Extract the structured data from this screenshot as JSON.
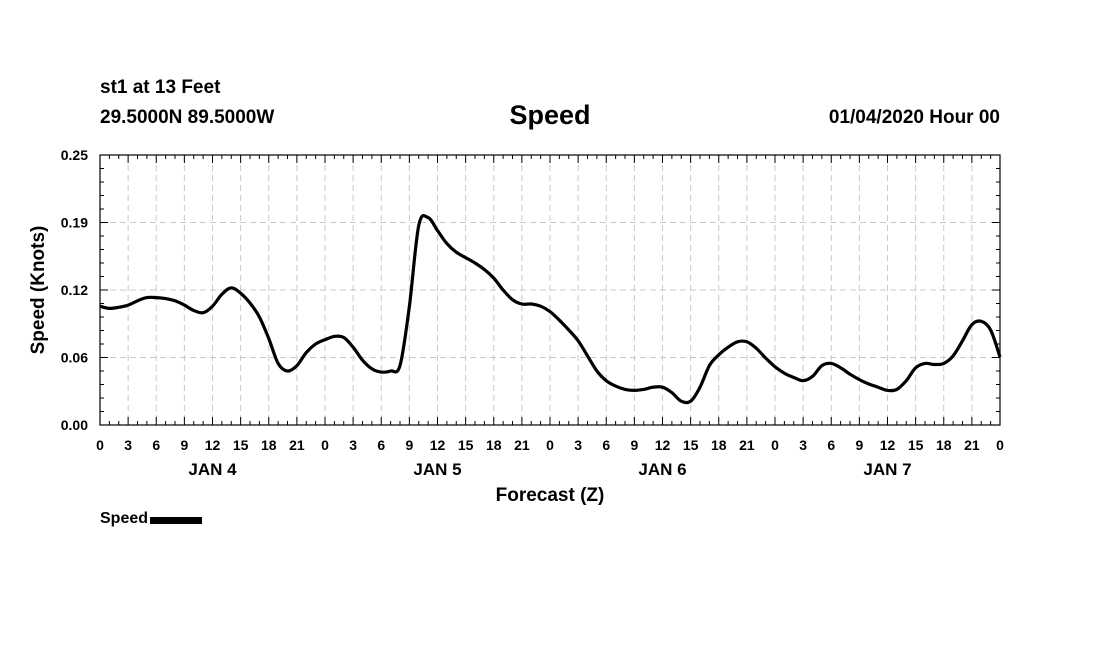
{
  "header": {
    "station": "st1 at 13 Feet",
    "coords": "29.5000N 89.5000W",
    "datetime": "01/04/2020 Hour 00"
  },
  "chart_data": {
    "type": "line",
    "title": "Speed",
    "xlabel": "Forecast (Z)",
    "ylabel": "Speed (Knots)",
    "xlim": [
      0,
      96
    ],
    "ylim": [
      0,
      0.25
    ],
    "yticks": [
      "0.00",
      "0.06",
      "0.12",
      "0.19",
      "0.25"
    ],
    "xtick_labels": [
      "0",
      "3",
      "6",
      "9",
      "12",
      "15",
      "18",
      "21",
      "0",
      "3",
      "6",
      "9",
      "12",
      "15",
      "18",
      "21",
      "0",
      "3",
      "6",
      "9",
      "12",
      "15",
      "18",
      "21",
      "0",
      "3",
      "6",
      "9",
      "12",
      "15",
      "18",
      "21",
      "0"
    ],
    "day_labels": [
      {
        "label": "JAN 4",
        "x": 12
      },
      {
        "label": "JAN 5",
        "x": 36
      },
      {
        "label": "JAN 6",
        "x": 60
      },
      {
        "label": "JAN 7",
        "x": 84
      }
    ],
    "grid": true,
    "legend": "bottom-left",
    "series": [
      {
        "name": "Speed",
        "color": "#000000",
        "x": [
          0,
          1,
          2,
          3,
          4,
          5,
          6,
          7,
          8,
          9,
          10,
          11,
          12,
          13,
          14,
          15,
          16,
          17,
          18,
          19,
          20,
          21,
          22,
          23,
          24,
          25,
          26,
          27,
          28,
          29,
          30,
          31,
          32,
          33,
          34,
          35,
          36,
          37,
          38,
          39,
          40,
          41,
          42,
          43,
          44,
          45,
          46,
          47,
          48,
          49,
          50,
          51,
          52,
          53,
          54,
          55,
          56,
          57,
          58,
          59,
          60,
          61,
          62,
          63,
          64,
          65,
          66,
          67,
          68,
          69,
          70,
          71,
          72,
          73,
          74,
          75,
          76,
          77,
          78,
          79,
          80,
          81,
          82,
          83,
          84,
          85,
          86,
          87,
          88,
          89,
          90,
          91,
          92,
          93,
          94,
          95,
          96
        ],
        "values": [
          0.11,
          0.108,
          0.109,
          0.111,
          0.115,
          0.118,
          0.118,
          0.117,
          0.115,
          0.111,
          0.106,
          0.104,
          0.11,
          0.121,
          0.127,
          0.122,
          0.113,
          0.1,
          0.08,
          0.057,
          0.05,
          0.055,
          0.067,
          0.075,
          0.079,
          0.082,
          0.081,
          0.072,
          0.06,
          0.052,
          0.049,
          0.05,
          0.055,
          0.11,
          0.185,
          0.192,
          0.18,
          0.168,
          0.16,
          0.155,
          0.15,
          0.144,
          0.136,
          0.125,
          0.116,
          0.112,
          0.112,
          0.11,
          0.105,
          0.097,
          0.088,
          0.078,
          0.064,
          0.05,
          0.041,
          0.036,
          0.033,
          0.032,
          0.033,
          0.035,
          0.035,
          0.03,
          0.022,
          0.022,
          0.035,
          0.055,
          0.065,
          0.072,
          0.077,
          0.077,
          0.071,
          0.062,
          0.054,
          0.048,
          0.044,
          0.041,
          0.045,
          0.055,
          0.057,
          0.053,
          0.047,
          0.042,
          0.038,
          0.035,
          0.032,
          0.033,
          0.041,
          0.053,
          0.057,
          0.056,
          0.057,
          0.064,
          0.078,
          0.093,
          0.096,
          0.088,
          0.063
        ]
      }
    ]
  }
}
